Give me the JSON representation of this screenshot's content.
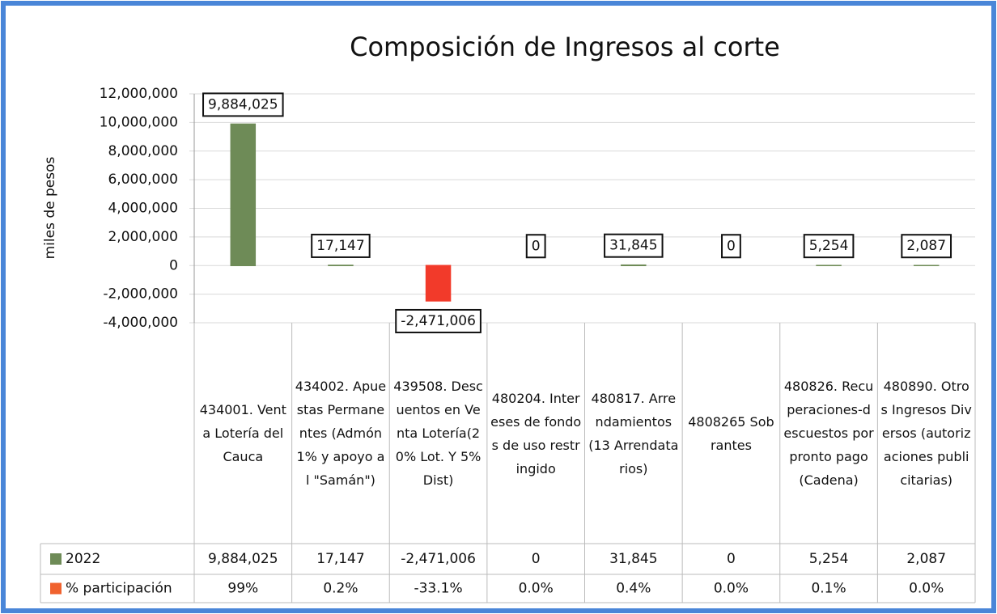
{
  "chart_data": {
    "type": "bar",
    "title": "Composición de Ingresos al corte",
    "y_label": "miles de pesos",
    "categories": [
      "434001. Venta Lotería del Cauca",
      "434002. Apuestas Permanentes (Admón 1% y apoyo al \"Samán\")",
      "439508. Descuentos en Venta Lotería(20% Lot. Y 5%Dist)",
      "480204. Intereses de fondos de uso restringido",
      "480817. Arrendamientos (13 Arrendatarios)",
      "4808265 Sobrantes",
      "480826. Recuperaciones-descuestos por pronto pago(Cadena)",
      "480890. Otros Ingresos Diversos (autorizaciones publicitarias)"
    ],
    "series": [
      {
        "name": "2022",
        "color": "#6e8b57",
        "colors": [
          "#6e8b57",
          "#6e8b57",
          "#f23a2a",
          "#6e8b57",
          "#6e8b57",
          "#6e8b57",
          "#6e8b57",
          "#6e8b57"
        ],
        "values": [
          9884025,
          17147,
          -2471006,
          0,
          31845,
          0,
          5254,
          2087
        ],
        "value_labels": [
          "9,884,025",
          "17,147",
          "-2,471,006",
          "0",
          "31,845",
          "0",
          "5,254",
          "2,087"
        ]
      },
      {
        "name": "% participación",
        "color": "#f0622e",
        "values": [
          99,
          0.2,
          -33.1,
          0.0,
          0.4,
          0.0,
          0.1,
          0.0
        ],
        "value_labels": [
          "99%",
          "0.2%",
          "-33.1%",
          "0.0%",
          "0.4%",
          "0.0%",
          "0.1%",
          "0.0%"
        ]
      }
    ],
    "ylim": [
      -4000000,
      12000000
    ],
    "yticks": [
      {
        "value": -4000000,
        "label": "-4,000,000"
      },
      {
        "value": -2000000,
        "label": "-2,000,000"
      },
      0,
      {
        "value": 2000000,
        "label": "2,000,000"
      },
      {
        "value": 4000000,
        "label": "4,000,000"
      },
      {
        "value": 6000000,
        "label": "6,000,000"
      },
      {
        "value": 8000000,
        "label": "8,000,000"
      },
      {
        "value": 10000000,
        "label": "10,000,000"
      },
      {
        "value": 12000000,
        "label": "12,000,000"
      }
    ],
    "grid": true
  }
}
